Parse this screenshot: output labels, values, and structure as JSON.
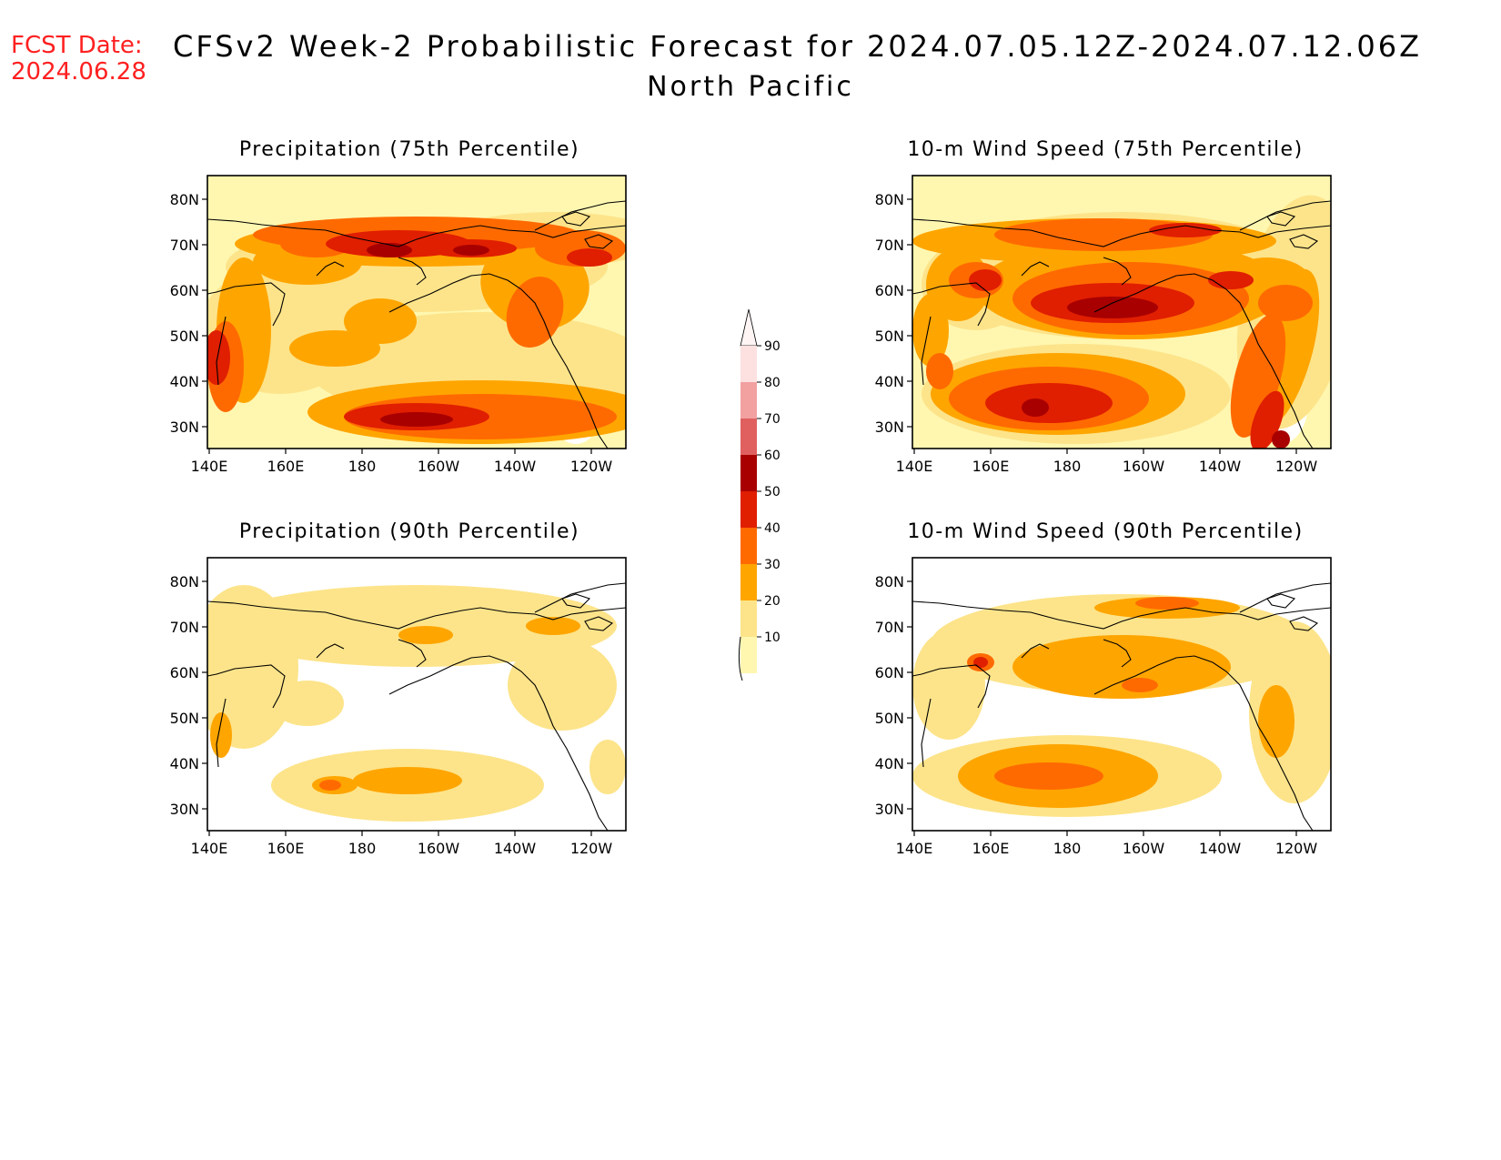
{
  "header": {
    "fcst_label": "FCST Date:",
    "fcst_date": "2024.06.28",
    "title": "CFSv2 Week-2 Probabilistic Forecast for 2024.07.05.12Z-2024.07.12.06Z",
    "subtitle": "North Pacific"
  },
  "panels": [
    {
      "id": "precip75",
      "title": "Precipitation (75th Percentile)"
    },
    {
      "id": "wind75",
      "title": "10-m Wind Speed (75th Percentile)"
    },
    {
      "id": "precip90",
      "title": "Precipitation (90th Percentile)"
    },
    {
      "id": "wind90",
      "title": "10-m Wind Speed (90th Percentile)"
    }
  ],
  "axes": {
    "lon_labels": [
      "140E",
      "160E",
      "180",
      "160W",
      "140W",
      "120W"
    ],
    "lat_labels": [
      "80N",
      "70N",
      "60N",
      "50N",
      "40N",
      "30N"
    ]
  },
  "colorbar": {
    "labels": [
      "10",
      "20",
      "30",
      "40",
      "50",
      "60",
      "70",
      "80",
      "90"
    ],
    "colors": [
      "#fff7b0",
      "#fde48a",
      "#ffa500",
      "#ff6a00",
      "#e01e00",
      "#a80000",
      "#e06060",
      "#f2a0a0",
      "#fde0e0"
    ]
  }
}
